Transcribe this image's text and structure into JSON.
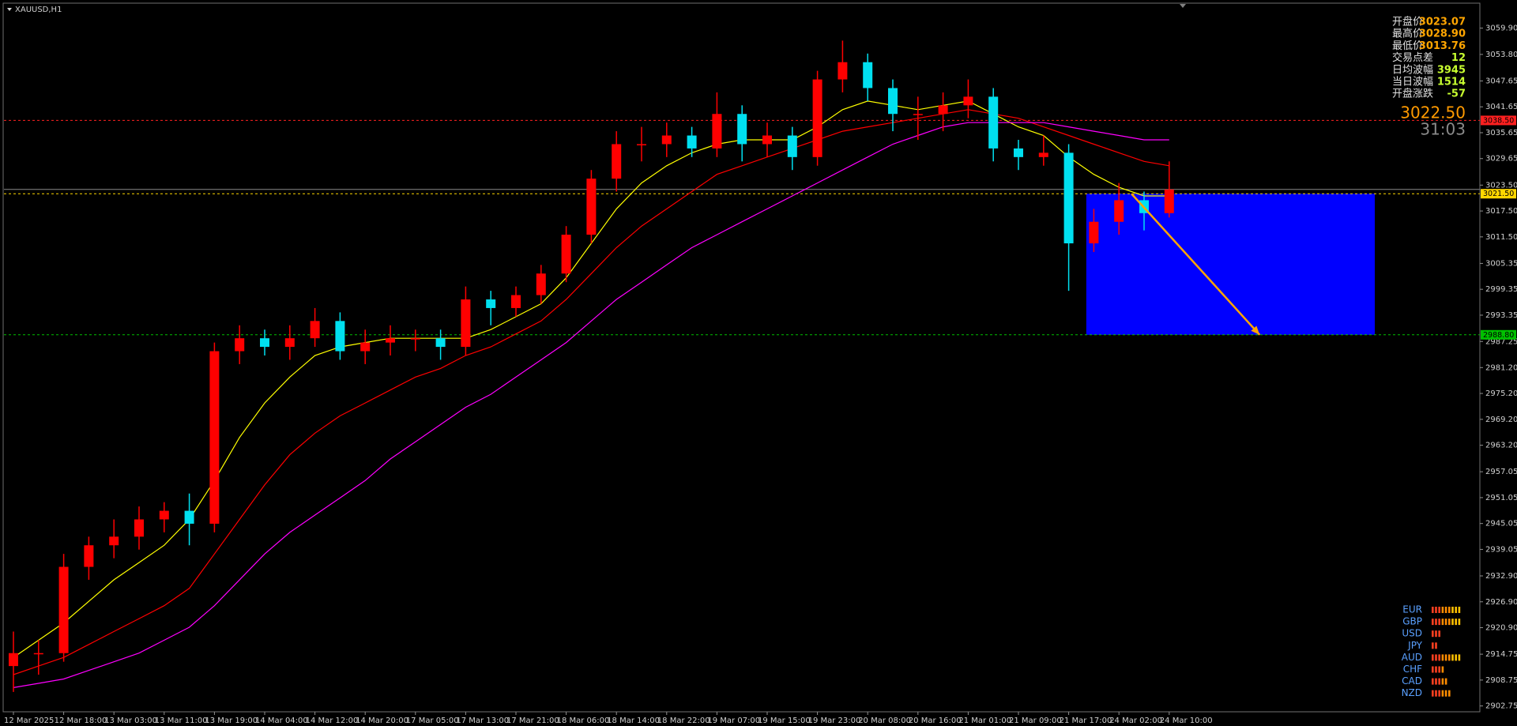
{
  "chart_data": {
    "type": "candlestick",
    "title": "XAUUSD,H1",
    "categories": [
      "12 Mar 2025",
      null,
      "12 Mar 18:00",
      null,
      "13 Mar 03:00",
      null,
      "13 Mar 11:00",
      null,
      "13 Mar 19:00",
      null,
      "14 Mar 04:00",
      null,
      "14 Mar 12:00",
      null,
      "14 Mar 20:00",
      null,
      "17 Mar 05:00",
      null,
      "17 Mar 13:00",
      null,
      "17 Mar 21:00",
      null,
      "18 Mar 06:00",
      null,
      "18 Mar 14:00",
      null,
      "18 Mar 22:00",
      null,
      "19 Mar 07:00",
      null,
      "19 Mar 15:00",
      null,
      "19 Mar 23:00",
      null,
      "20 Mar 08:00",
      null,
      "20 Mar 16:00",
      null,
      "21 Mar 01:00",
      null,
      "21 Mar 09:00",
      null,
      "21 Mar 17:00",
      null,
      "24 Mar 02:00",
      null,
      "24 Mar 10:00"
    ],
    "open": [
      2912,
      2915,
      2915,
      2935,
      2940,
      2942,
      2946,
      2948,
      2945,
      2985,
      2988,
      2986,
      2988,
      2992,
      2985,
      2987,
      2988,
      2988,
      2986,
      2997,
      2995,
      2998,
      3003,
      3012,
      3025,
      3033,
      3033,
      3035,
      3032,
      3040,
      3033,
      3035,
      3030,
      3048,
      3052,
      3046,
      3040,
      3040,
      3042,
      3044,
      3032,
      3030,
      3031,
      3010,
      3015,
      3020,
      3017
    ],
    "high": [
      2920,
      2918,
      2938,
      2942,
      2946,
      2949,
      2950,
      2952,
      2987,
      2991,
      2990,
      2991,
      2995,
      2994,
      2990,
      2991,
      2990,
      2990,
      3000,
      2999,
      3000,
      3005,
      3014,
      3027,
      3036,
      3037,
      3038,
      3037,
      3045,
      3042,
      3038,
      3037,
      3050,
      3057,
      3054,
      3048,
      3044,
      3045,
      3048,
      3046,
      3034,
      3035,
      3033,
      3018,
      3024,
      3022,
      3029
    ],
    "low": [
      2906,
      2910,
      2913,
      2932,
      2937,
      2939,
      2943,
      2940,
      2943,
      2982,
      2984,
      2983,
      2986,
      2983,
      2982,
      2984,
      2985,
      2983,
      2984,
      2991,
      2993,
      2996,
      3001,
      3010,
      3022,
      3029,
      3030,
      3030,
      3030,
      3029,
      3030,
      3027,
      3028,
      3045,
      3043,
      3036,
      3034,
      3036,
      3039,
      3029,
      3027,
      3028,
      2999,
      3008,
      3012,
      3013,
      3016
    ],
    "close": [
      2915,
      2915,
      2935,
      2940,
      2942,
      2946,
      2948,
      2945,
      2985,
      2988,
      2986,
      2988,
      2992,
      2985,
      2987,
      2988,
      2988,
      2986,
      2997,
      2995,
      2998,
      3003,
      3012,
      3025,
      3033,
      3033,
      3035,
      3032,
      3040,
      3033,
      3035,
      3030,
      3048,
      3052,
      3046,
      3040,
      3040,
      3042,
      3044,
      3032,
      3030,
      3031,
      3010,
      3015,
      3020,
      3017,
      3022.5
    ],
    "up_color": "#ff0000",
    "down_color": "#00e0f0",
    "ma": [
      {
        "color": "#ffff00",
        "values": [
          2914,
          2918,
          2922,
          2927,
          2932,
          2936,
          2940,
          2946,
          2955,
          2965,
          2973,
          2979,
          2984,
          2986,
          2987,
          2988,
          2988,
          2988,
          2988,
          2990,
          2993,
          2996,
          3002,
          3010,
          3018,
          3024,
          3028,
          3031,
          3033,
          3034,
          3034,
          3034,
          3037,
          3041,
          3043,
          3042,
          3041,
          3042,
          3043,
          3040,
          3037,
          3035,
          3030,
          3026,
          3023,
          3021,
          3021
        ]
      },
      {
        "color": "#ff0000",
        "values": [
          2910,
          2912,
          2914,
          2917,
          2920,
          2923,
          2926,
          2930,
          2938,
          2946,
          2954,
          2961,
          2966,
          2970,
          2973,
          2976,
          2979,
          2981,
          2984,
          2986,
          2989,
          2992,
          2997,
          3003,
          3009,
          3014,
          3018,
          3022,
          3026,
          3028,
          3030,
          3032,
          3034,
          3036,
          3037,
          3038,
          3039,
          3040,
          3041,
          3040,
          3039,
          3037,
          3035,
          3033,
          3031,
          3029,
          3028
        ]
      },
      {
        "color": "#ff00ff",
        "values": [
          2907,
          2908,
          2909,
          2911,
          2913,
          2915,
          2918,
          2921,
          2926,
          2932,
          2938,
          2943,
          2947,
          2951,
          2955,
          2960,
          2964,
          2968,
          2972,
          2975,
          2979,
          2983,
          2987,
          2992,
          2997,
          3001,
          3005,
          3009,
          3012,
          3015,
          3018,
          3021,
          3024,
          3027,
          3030,
          3033,
          3035,
          3037,
          3038,
          3038,
          3038,
          3038,
          3037,
          3036,
          3035,
          3034,
          3034
        ]
      }
    ],
    "ylim": [
      2901.4,
      3065.5
    ],
    "yticks": [
      {
        "value": 3059.9,
        "label": "3059.90"
      },
      {
        "value": 3053.8,
        "label": "3053.80"
      },
      3047.65,
      3041.65,
      3035.65,
      3029.65,
      {
        "value": 3023.5,
        "label": "3023.50"
      },
      {
        "value": 3017.5,
        "label": "3017.50"
      },
      {
        "value": 3011.5,
        "label": "3011.50"
      },
      3005.35,
      2999.35,
      2993.35,
      2987.25,
      {
        "value": 2981.2,
        "label": "2981.20"
      },
      {
        "value": 2975.2,
        "label": "2975.20"
      },
      {
        "value": 2969.2,
        "label": "2969.20"
      },
      {
        "value": 2963.2,
        "label": "2963.20"
      },
      2957.05,
      2951.05,
      2945.05,
      2939.05,
      {
        "value": 2932.9,
        "label": "2932.90"
      },
      {
        "value": 2926.9,
        "label": "2926.90"
      },
      {
        "value": 2920.9,
        "label": "2920.90"
      },
      2914.75,
      2908.75,
      2902.75
    ],
    "levels": [
      {
        "value": 3038.5,
        "label": "3038.50",
        "color": "#ff2020"
      },
      {
        "value": 3021.5,
        "label": "3021.50",
        "color": "#ffd700"
      },
      {
        "value": 2988.8,
        "label": "2988.80",
        "color": "#00c000"
      }
    ],
    "bid": {
      "value": 3022.5,
      "label": "3022.50",
      "color": "#8a8a8a"
    },
    "zone": {
      "top": 3021.5,
      "bottom": 2988.8,
      "color": "#0000ff"
    },
    "arrow": {
      "from": 3021.5,
      "to": 2988.8,
      "color": "#ffa500"
    }
  },
  "info": {
    "rows": [
      {
        "label": "开盘价",
        "value": "3023.07"
      },
      {
        "label": "最高价",
        "value": "3028.90"
      },
      {
        "label": "最低价",
        "value": "3013.76"
      },
      {
        "label": "交易点差",
        "value": "12"
      },
      {
        "label": "日均波幅",
        "value": "3945"
      },
      {
        "label": "当日波幅",
        "value": "1514"
      },
      {
        "label": "开盘涨跌",
        "value": "-57"
      }
    ],
    "price": "3022.50",
    "countdown": "31:03"
  },
  "strength": [
    {
      "name": "EUR",
      "bars": 9
    },
    {
      "name": "GBP",
      "bars": 9
    },
    {
      "name": "USD",
      "bars": 3
    },
    {
      "name": "JPY",
      "bars": 2
    },
    {
      "name": "AUD",
      "bars": 9
    },
    {
      "name": "CHF",
      "bars": 4
    },
    {
      "name": "CAD",
      "bars": 5
    },
    {
      "name": "NZD",
      "bars": 6
    }
  ]
}
